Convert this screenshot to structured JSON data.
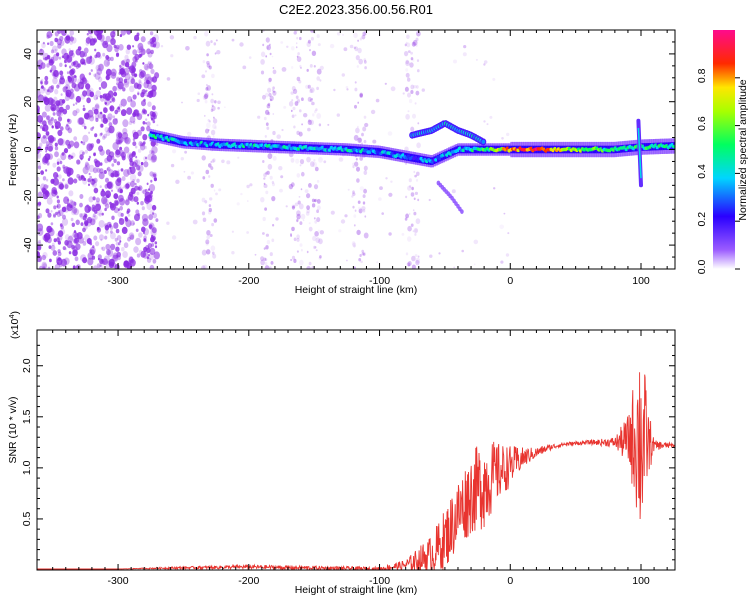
{
  "figure_title": "C2E2.2023.356.00.56.R01",
  "colors": {
    "snr_line": "#e8342f",
    "spectrogram_noise": "#8a2be2",
    "colorbar": [
      "#ff00ff",
      "#ff0000",
      "#ffff00",
      "#00ff00",
      "#00ffff",
      "#0000ff",
      "#8000ff",
      "#ffffff"
    ]
  },
  "chart_data": [
    {
      "type": "heatmap",
      "title": "",
      "xlabel": "Height of straight line (km)",
      "ylabel": "Frequency (Hz)",
      "xlim": [
        -362,
        126
      ],
      "ylim": [
        -50,
        50
      ],
      "xticks": [
        -300,
        -200,
        -100,
        0,
        100
      ],
      "yticks": [
        -40,
        -20,
        0,
        20,
        40
      ],
      "colorbar": {
        "label": "Normalized spectral amplitude",
        "range": [
          0.0,
          1.0
        ],
        "ticks": [
          "0.0",
          "0.2",
          "0.4",
          "0.6",
          "0.8"
        ]
      },
      "features": {
        "noise_region_x": [
          -362,
          -270
        ],
        "noise_stripes_x": [
          -230,
          -185,
          -163,
          -150,
          -115,
          -75
        ],
        "main_band": {
          "x": [
            -275,
            -250,
            -225,
            -200,
            -175,
            -150,
            -125,
            -100,
            -80,
            -60,
            -40,
            -20,
            0,
            20,
            50,
            80,
            100,
            126
          ],
          "freq_hz": [
            6,
            3,
            2,
            1.5,
            1,
            0.5,
            0,
            -1,
            -3,
            -5,
            0,
            0,
            0,
            0,
            0,
            0,
            1,
            1.5
          ],
          "amplitude": [
            0.45,
            0.35,
            0.35,
            0.4,
            0.4,
            0.4,
            0.4,
            0.35,
            0.3,
            0.3,
            0.35,
            0.5,
            0.8,
            0.9,
            0.6,
            0.45,
            0.5,
            0.45
          ]
        },
        "upper_branch": {
          "x": [
            -75,
            -60,
            -50,
            -40,
            -30,
            -20
          ],
          "freq_hz": [
            6,
            8,
            11,
            8,
            6,
            3
          ]
        },
        "lower_branch": {
          "x": [
            -55,
            -45,
            -37
          ],
          "freq_hz": [
            -14,
            -20,
            -26
          ]
        },
        "spike_x100": {
          "x": 98,
          "freq_hz": [
            -15,
            12
          ]
        }
      }
    },
    {
      "type": "line",
      "title": "",
      "xlabel": "Height of straight line (km)",
      "ylabel": "SNR (10 * v/v)",
      "y_multiplier": "(x10",
      "y_multiplier_exp": "4",
      "y_multiplier_close": ")",
      "xlim": [
        -362,
        126
      ],
      "ylim": [
        0,
        2.35
      ],
      "xticks": [
        -300,
        -200,
        -100,
        0,
        100
      ],
      "yticks": [
        0.5,
        1.0,
        1.5,
        2.0
      ],
      "ytick_labels": [
        "0.5",
        "1.0",
        "1.5",
        "2.0"
      ],
      "series": [
        {
          "x": [
            -362,
            -300,
            -260,
            -200,
            -150,
            -100,
            -80,
            -60,
            -50,
            -40,
            -30,
            -20,
            -10,
            0,
            10,
            20,
            30,
            40,
            60,
            80,
            90,
            95,
            100,
            105,
            110,
            126
          ],
          "y": [
            0.01,
            0.01,
            0.02,
            0.03,
            0.02,
            0.01,
            0.05,
            0.15,
            0.3,
            0.55,
            0.75,
            0.85,
            0.95,
            1.02,
            1.1,
            1.15,
            1.2,
            1.23,
            1.25,
            1.25,
            1.27,
            1.3,
            1.3,
            1.25,
            1.22,
            1.22
          ],
          "envelope": [
            0,
            0,
            0.01,
            0.02,
            0.02,
            0.02,
            0.05,
            0.2,
            0.3,
            0.35,
            0.4,
            0.45,
            0.3,
            0.2,
            0.1,
            0.05,
            0.03,
            0.02,
            0.02,
            0.05,
            0.25,
            0.6,
            1.1,
            0.4,
            0.05,
            0.02
          ]
        }
      ]
    }
  ]
}
